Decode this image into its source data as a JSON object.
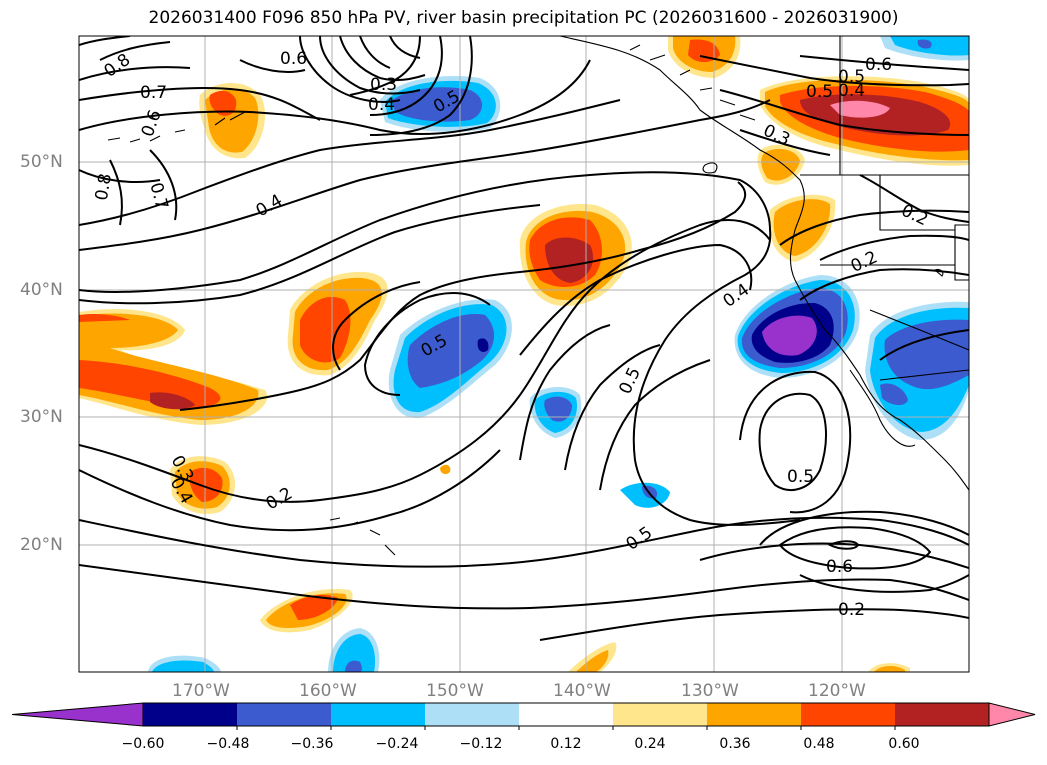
{
  "title": "2026031400 F096 850 hPa PV, river basin precipitation PC (2026031600 - 2026031900)",
  "map": {
    "lat_labels": [
      "50°N",
      "40°N",
      "30°N",
      "20°N"
    ],
    "lon_labels": [
      "170°W",
      "160°W",
      "150°W",
      "140°W",
      "130°W",
      "120°W"
    ],
    "contour_labels": [
      "0.8",
      "0.6",
      "0.7",
      "0.6",
      "0.8",
      "0.7",
      "0.4",
      "0.5",
      "0.3",
      "0.4",
      "0.3",
      "0.2",
      "0.4",
      "0.5",
      "0.5",
      "0.5",
      "0.6",
      "0.2",
      "0.2",
      "0.3",
      "0.4",
      "0.2",
      "0.5",
      "0.6",
      "0.5",
      "0.4",
      "0.5"
    ]
  },
  "colorbar": {
    "ticks": [
      "−0.60",
      "−0.48",
      "−0.36",
      "−0.24",
      "−0.12",
      "0.12",
      "0.24",
      "0.36",
      "0.48",
      "0.60"
    ],
    "colors": [
      "#9932cc",
      "#00008b",
      "#3b5bcf",
      "#00bfff",
      "#ade0f7",
      "#ffffff",
      "#ffe68c",
      "#ffa500",
      "#ff4500",
      "#b22222",
      "#ff88aa"
    ]
  }
}
